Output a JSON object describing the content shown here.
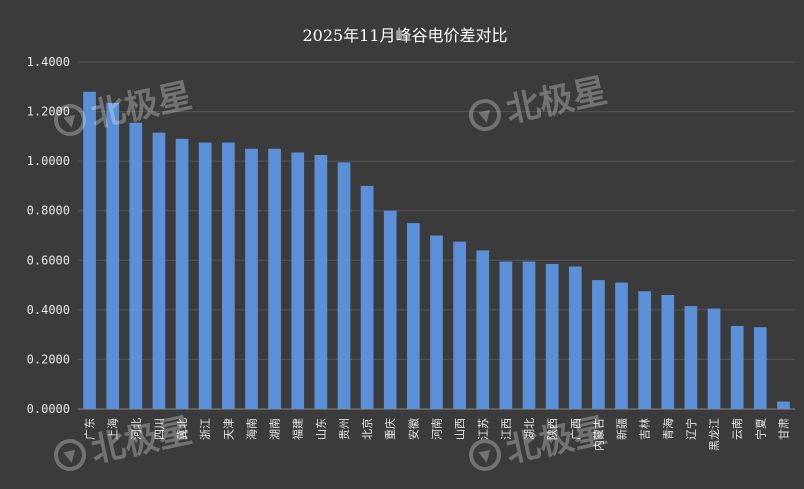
{
  "chart_data": {
    "type": "bar",
    "title": "2025年11月峰谷电价差对比",
    "xlabel": "",
    "ylabel": "",
    "ylim": [
      0,
      1.4
    ],
    "yticks": [
      "0.0000",
      "0.2000",
      "0.4000",
      "0.6000",
      "0.8000",
      "1.0000",
      "1.2000",
      "1.4000"
    ],
    "grid": true,
    "legend": "none",
    "bar_color": "#5b8fd8",
    "background_color": "#3b3b3b",
    "categories": [
      "广东",
      "上海",
      "河北",
      "四川",
      "冀北",
      "浙江",
      "天津",
      "海南",
      "湖南",
      "福建",
      "山东",
      "贵州",
      "北京",
      "重庆",
      "安徽",
      "河南",
      "山西",
      "江苏",
      "江西",
      "湖北",
      "陕西",
      "广西",
      "内蒙古",
      "新疆",
      "吉林",
      "青海",
      "辽宁",
      "黑龙江",
      "云南",
      "宁夏",
      "甘肃"
    ],
    "values": [
      1.28,
      1.235,
      1.155,
      1.115,
      1.09,
      1.075,
      1.075,
      1.05,
      1.05,
      1.035,
      1.025,
      0.995,
      0.9,
      0.8,
      0.75,
      0.7,
      0.675,
      0.64,
      0.595,
      0.595,
      0.585,
      0.575,
      0.52,
      0.51,
      0.475,
      0.46,
      0.415,
      0.405,
      0.335,
      0.33,
      0.03
    ]
  },
  "watermark": "北极星"
}
